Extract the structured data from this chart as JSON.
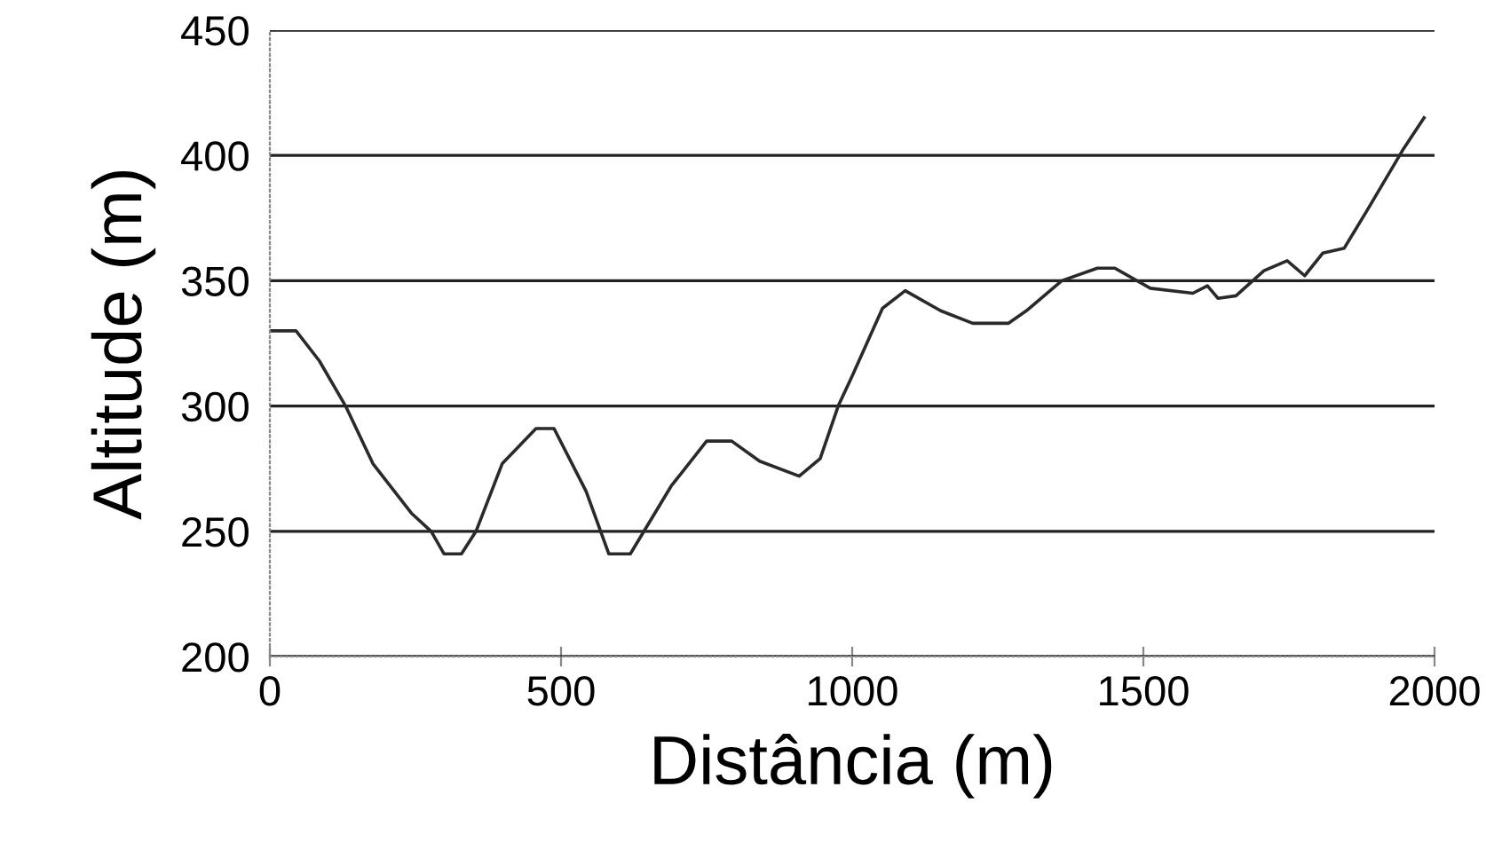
{
  "chart_data": {
    "type": "line",
    "xlabel": "Distância (m)",
    "ylabel": "Altitude (m)",
    "xlim": [
      0,
      2000
    ],
    "xticks": [
      0,
      500,
      1000,
      1500,
      2000
    ],
    "ylim": [
      200,
      450
    ],
    "yticks": [
      200,
      250,
      300,
      350,
      400,
      450
    ],
    "grid": "y",
    "legend": false,
    "marker": "none",
    "line_style": "solid",
    "series": [
      {
        "color": "#2a2a2a",
        "x": [
          0,
          45,
          85,
          130,
          177,
          244,
          277,
          299,
          329,
          354,
          399,
          457,
          488,
          543,
          582,
          619,
          689,
          750,
          793,
          841,
          909,
          945,
          976,
          1000,
          1052,
          1091,
          1152,
          1207,
          1268,
          1299,
          1360,
          1421,
          1451,
          1512,
          1585,
          1610,
          1628,
          1659,
          1707,
          1747,
          1777,
          1808,
          1845,
          1884,
          1945,
          1982
        ],
        "values": [
          330,
          330,
          318,
          300,
          277,
          257,
          250,
          241,
          241,
          250,
          277,
          291,
          291,
          266,
          241,
          241,
          268,
          286,
          286,
          278,
          272,
          279,
          300,
          312,
          339,
          346,
          338,
          333,
          333,
          338,
          350,
          355,
          355,
          347,
          345,
          348,
          343,
          344,
          354,
          358,
          352,
          361,
          363,
          378,
          402,
          415
        ]
      }
    ]
  }
}
